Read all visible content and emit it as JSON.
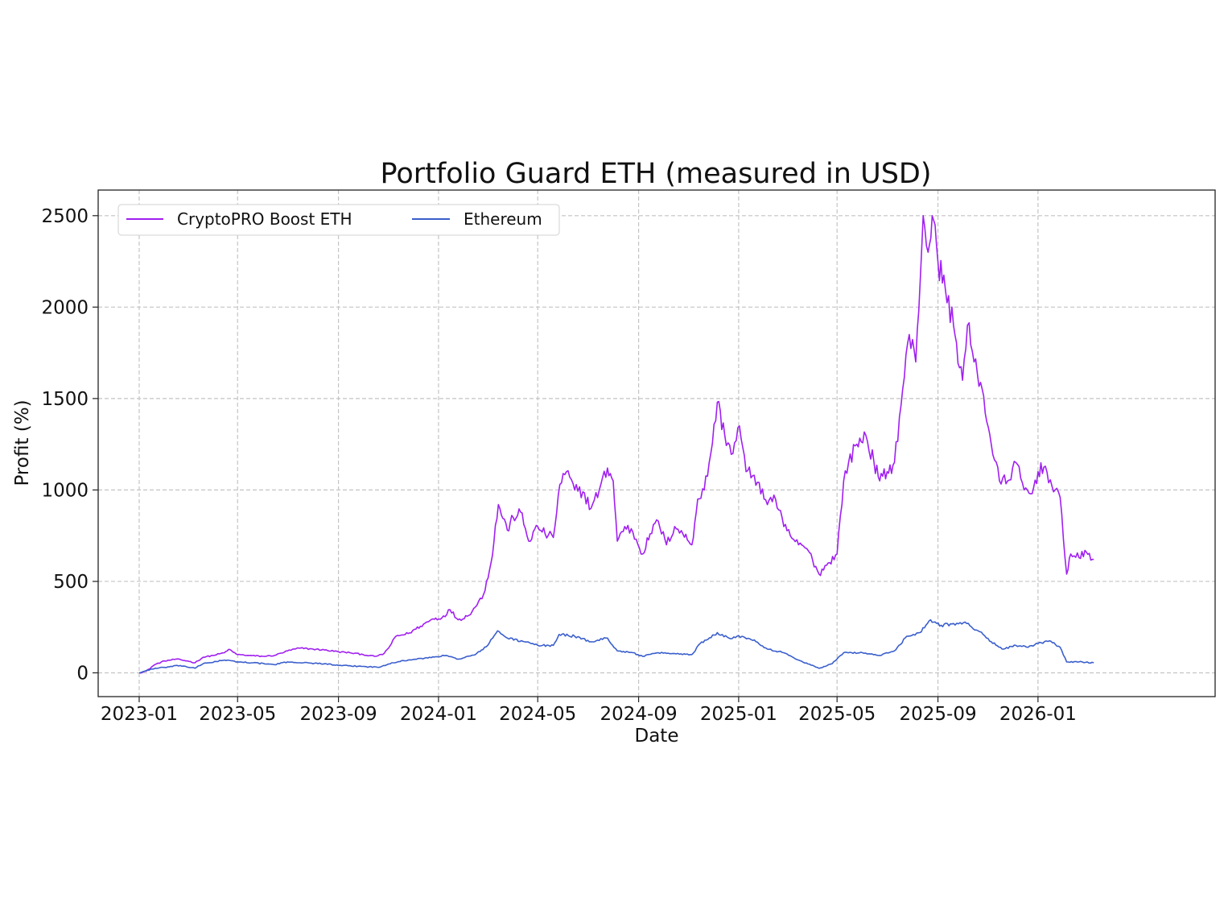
{
  "chart_data": {
    "type": "line",
    "title": "Portfolio Guard ETH (measured in USD)",
    "xlabel": "Date",
    "ylabel": "Profit (%)",
    "xlim": [
      "2022-11-12",
      "2026-08-05"
    ],
    "ylim": [
      -130,
      2640
    ],
    "grid": true,
    "legend_position": "top-left",
    "x_ticks": [
      "2023-01",
      "2023-05",
      "2023-09",
      "2024-01",
      "2024-05",
      "2024-09",
      "2025-01",
      "2025-05",
      "2025-09",
      "2026-01"
    ],
    "y_ticks": [
      0,
      500,
      1000,
      1500,
      2000,
      2500
    ],
    "series": [
      {
        "name": "CryptoPRO Boost ETH",
        "color": "#a020f0",
        "points": [
          [
            "2023-01-01",
            0
          ],
          [
            "2023-01-10",
            10
          ],
          [
            "2023-01-20",
            45
          ],
          [
            "2023-02-01",
            65
          ],
          [
            "2023-02-15",
            75
          ],
          [
            "2023-03-01",
            65
          ],
          [
            "2023-03-10",
            55
          ],
          [
            "2023-03-20",
            85
          ],
          [
            "2023-04-01",
            95
          ],
          [
            "2023-04-15",
            110
          ],
          [
            "2023-04-20",
            128
          ],
          [
            "2023-05-01",
            100
          ],
          [
            "2023-05-15",
            95
          ],
          [
            "2023-06-01",
            90
          ],
          [
            "2023-06-15",
            95
          ],
          [
            "2023-07-01",
            120
          ],
          [
            "2023-07-15",
            135
          ],
          [
            "2023-08-01",
            130
          ],
          [
            "2023-08-15",
            125
          ],
          [
            "2023-09-01",
            115
          ],
          [
            "2023-09-15",
            110
          ],
          [
            "2023-10-01",
            100
          ],
          [
            "2023-10-15",
            90
          ],
          [
            "2023-10-25",
            100
          ],
          [
            "2023-11-01",
            135
          ],
          [
            "2023-11-10",
            200
          ],
          [
            "2023-11-25",
            215
          ],
          [
            "2023-12-10",
            255
          ],
          [
            "2023-12-25",
            295
          ],
          [
            "2024-01-05",
            300
          ],
          [
            "2024-01-15",
            345
          ],
          [
            "2024-01-25",
            290
          ],
          [
            "2024-02-05",
            310
          ],
          [
            "2024-02-15",
            360
          ],
          [
            "2024-02-25",
            430
          ],
          [
            "2024-03-05",
            600
          ],
          [
            "2024-03-14",
            920
          ],
          [
            "2024-03-25",
            780
          ],
          [
            "2024-04-01",
            850
          ],
          [
            "2024-04-10",
            880
          ],
          [
            "2024-04-20",
            720
          ],
          [
            "2024-05-01",
            800
          ],
          [
            "2024-05-10",
            760
          ],
          [
            "2024-05-20",
            740
          ],
          [
            "2024-05-28",
            1030
          ],
          [
            "2024-06-05",
            1100
          ],
          [
            "2024-06-15",
            1000
          ],
          [
            "2024-06-25",
            990
          ],
          [
            "2024-07-05",
            900
          ],
          [
            "2024-07-15",
            1000
          ],
          [
            "2024-07-25",
            1120
          ],
          [
            "2024-08-01",
            1050
          ],
          [
            "2024-08-06",
            720
          ],
          [
            "2024-08-15",
            800
          ],
          [
            "2024-08-25",
            770
          ],
          [
            "2024-09-06",
            650
          ],
          [
            "2024-09-15",
            760
          ],
          [
            "2024-09-25",
            830
          ],
          [
            "2024-10-05",
            700
          ],
          [
            "2024-10-15",
            800
          ],
          [
            "2024-10-25",
            760
          ],
          [
            "2024-11-05",
            700
          ],
          [
            "2024-11-12",
            950
          ],
          [
            "2024-11-20",
            1000
          ],
          [
            "2024-11-28",
            1200
          ],
          [
            "2024-12-06",
            1480
          ],
          [
            "2024-12-15",
            1300
          ],
          [
            "2024-12-25",
            1200
          ],
          [
            "2025-01-02",
            1350
          ],
          [
            "2025-01-10",
            1100
          ],
          [
            "2025-01-20",
            1080
          ],
          [
            "2025-02-01",
            950
          ],
          [
            "2025-02-15",
            950
          ],
          [
            "2025-02-25",
            800
          ],
          [
            "2025-03-05",
            750
          ],
          [
            "2025-03-15",
            700
          ],
          [
            "2025-03-25",
            680
          ],
          [
            "2025-04-01",
            620
          ],
          [
            "2025-04-09",
            540
          ],
          [
            "2025-04-20",
            600
          ],
          [
            "2025-05-01",
            650
          ],
          [
            "2025-05-09",
            1050
          ],
          [
            "2025-05-15",
            1150
          ],
          [
            "2025-05-25",
            1250
          ],
          [
            "2025-06-05",
            1300
          ],
          [
            "2025-06-15",
            1150
          ],
          [
            "2025-06-22",
            1050
          ],
          [
            "2025-07-01",
            1100
          ],
          [
            "2025-07-10",
            1150
          ],
          [
            "2025-07-20",
            1550
          ],
          [
            "2025-07-28",
            1850
          ],
          [
            "2025-08-05",
            1700
          ],
          [
            "2025-08-14",
            2500
          ],
          [
            "2025-08-20",
            2300
          ],
          [
            "2025-08-25",
            2500
          ],
          [
            "2025-09-01",
            2250
          ],
          [
            "2025-09-10",
            2100
          ],
          [
            "2025-09-20",
            1900
          ],
          [
            "2025-10-01",
            1600
          ],
          [
            "2025-10-07",
            1900
          ],
          [
            "2025-10-15",
            1700
          ],
          [
            "2025-10-25",
            1550
          ],
          [
            "2025-11-05",
            1250
          ],
          [
            "2025-11-15",
            1050
          ],
          [
            "2025-11-25",
            1050
          ],
          [
            "2025-12-05",
            1150
          ],
          [
            "2025-12-15",
            1000
          ],
          [
            "2025-12-25",
            980
          ],
          [
            "2026-01-01",
            1100
          ],
          [
            "2026-01-10",
            1130
          ],
          [
            "2026-01-20",
            990
          ],
          [
            "2026-01-28",
            960
          ],
          [
            "2026-02-05",
            540
          ],
          [
            "2026-02-10",
            650
          ],
          [
            "2026-02-20",
            630
          ],
          [
            "2026-03-01",
            660
          ],
          [
            "2026-03-10",
            620
          ]
        ]
      },
      {
        "name": "Ethereum",
        "color": "#3a5fcd",
        "points": [
          [
            "2023-01-01",
            0
          ],
          [
            "2023-01-15",
            20
          ],
          [
            "2023-02-01",
            30
          ],
          [
            "2023-02-20",
            40
          ],
          [
            "2023-03-10",
            25
          ],
          [
            "2023-03-20",
            50
          ],
          [
            "2023-04-15",
            70
          ],
          [
            "2023-05-01",
            60
          ],
          [
            "2023-05-20",
            55
          ],
          [
            "2023-06-15",
            45
          ],
          [
            "2023-07-01",
            60
          ],
          [
            "2023-07-20",
            55
          ],
          [
            "2023-08-15",
            50
          ],
          [
            "2023-09-01",
            40
          ],
          [
            "2023-10-01",
            35
          ],
          [
            "2023-10-20",
            30
          ],
          [
            "2023-11-05",
            55
          ],
          [
            "2023-11-25",
            70
          ],
          [
            "2023-12-15",
            80
          ],
          [
            "2024-01-10",
            95
          ],
          [
            "2024-01-25",
            75
          ],
          [
            "2024-02-15",
            100
          ],
          [
            "2024-03-01",
            150
          ],
          [
            "2024-03-13",
            230
          ],
          [
            "2024-03-25",
            190
          ],
          [
            "2024-04-15",
            170
          ],
          [
            "2024-05-01",
            150
          ],
          [
            "2024-05-20",
            150
          ],
          [
            "2024-05-27",
            210
          ],
          [
            "2024-06-15",
            200
          ],
          [
            "2024-07-05",
            170
          ],
          [
            "2024-07-25",
            190
          ],
          [
            "2024-08-06",
            120
          ],
          [
            "2024-08-25",
            110
          ],
          [
            "2024-09-06",
            90
          ],
          [
            "2024-09-25",
            110
          ],
          [
            "2024-10-15",
            105
          ],
          [
            "2024-11-05",
            100
          ],
          [
            "2024-11-15",
            160
          ],
          [
            "2024-12-06",
            220
          ],
          [
            "2024-12-20",
            190
          ],
          [
            "2025-01-05",
            200
          ],
          [
            "2025-01-20",
            180
          ],
          [
            "2025-02-05",
            130
          ],
          [
            "2025-02-25",
            110
          ],
          [
            "2025-03-15",
            70
          ],
          [
            "2025-04-09",
            25
          ],
          [
            "2025-04-25",
            50
          ],
          [
            "2025-05-09",
            110
          ],
          [
            "2025-06-01",
            110
          ],
          [
            "2025-06-22",
            95
          ],
          [
            "2025-07-10",
            120
          ],
          [
            "2025-07-25",
            200
          ],
          [
            "2025-08-10",
            220
          ],
          [
            "2025-08-23",
            290
          ],
          [
            "2025-09-05",
            260
          ],
          [
            "2025-09-20",
            270
          ],
          [
            "2025-10-06",
            270
          ],
          [
            "2025-10-20",
            230
          ],
          [
            "2025-11-05",
            170
          ],
          [
            "2025-11-20",
            130
          ],
          [
            "2025-12-05",
            150
          ],
          [
            "2025-12-20",
            140
          ],
          [
            "2026-01-01",
            160
          ],
          [
            "2026-01-15",
            175
          ],
          [
            "2026-01-28",
            140
          ],
          [
            "2026-02-05",
            60
          ],
          [
            "2026-02-20",
            60
          ],
          [
            "2026-03-10",
            55
          ]
        ]
      }
    ]
  }
}
